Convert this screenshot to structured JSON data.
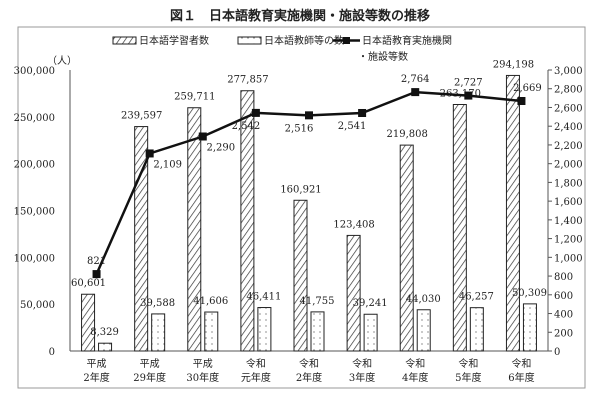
{
  "chart_data": {
    "type": "bar+line",
    "title": "図１　日本語教育実施機関・施設等数の推移",
    "left_unit": "（人）",
    "categories": [
      [
        "平成",
        "2年度"
      ],
      [
        "平成",
        "29年度"
      ],
      [
        "平成",
        "30年度"
      ],
      [
        "令和",
        "元年度"
      ],
      [
        "令和",
        "2年度"
      ],
      [
        "令和",
        "3年度"
      ],
      [
        "令和",
        "4年度"
      ],
      [
        "令和",
        "5年度"
      ],
      [
        "令和",
        "6年度"
      ]
    ],
    "left_ylim": [
      0,
      300000
    ],
    "left_ticks": [
      "0",
      "50,000",
      "100,000",
      "150,000",
      "200,000",
      "250,000",
      "300,000"
    ],
    "right_ylim": [
      0,
      3000
    ],
    "right_ticks": [
      "0",
      "200",
      "400",
      "600",
      "800",
      "1,000",
      "1,200",
      "1,400",
      "1,600",
      "1,800",
      "2,000",
      "2,200",
      "2,400",
      "2,600",
      "2,800",
      "3,000"
    ],
    "legend_placement": "top",
    "series": [
      {
        "name": "日本語学習者数",
        "axis": "left",
        "kind": "bar",
        "pattern": "hatched",
        "values": [
          60601,
          239597,
          259711,
          277857,
          160921,
          123408,
          219808,
          263170,
          294198
        ],
        "labels": [
          "60,601",
          "239,597",
          "259,711",
          "277,857",
          "160,921",
          "123,408",
          "219,808",
          "263,170",
          "294,198"
        ]
      },
      {
        "name": "日本語教師等の数",
        "axis": "left",
        "kind": "bar",
        "pattern": "dotted",
        "values": [
          8329,
          39588,
          41606,
          46411,
          41755,
          39241,
          44030,
          46257,
          50309
        ],
        "labels": [
          "8,329",
          "39,588",
          "41,606",
          "46,411",
          "41,755",
          "39,241",
          "44,030",
          "46,257",
          "50,309"
        ]
      },
      {
        "name": "日本語教育実施機関\n・施設等数",
        "axis": "right",
        "kind": "line",
        "color": "#111111",
        "values": [
          821,
          2109,
          2290,
          2542,
          2516,
          2541,
          2764,
          2727,
          2669
        ],
        "labels": [
          "821",
          "2,109",
          "2,290",
          "2,542",
          "2,516",
          "2,541",
          "2,764",
          "2,727",
          "2,669"
        ]
      }
    ]
  }
}
